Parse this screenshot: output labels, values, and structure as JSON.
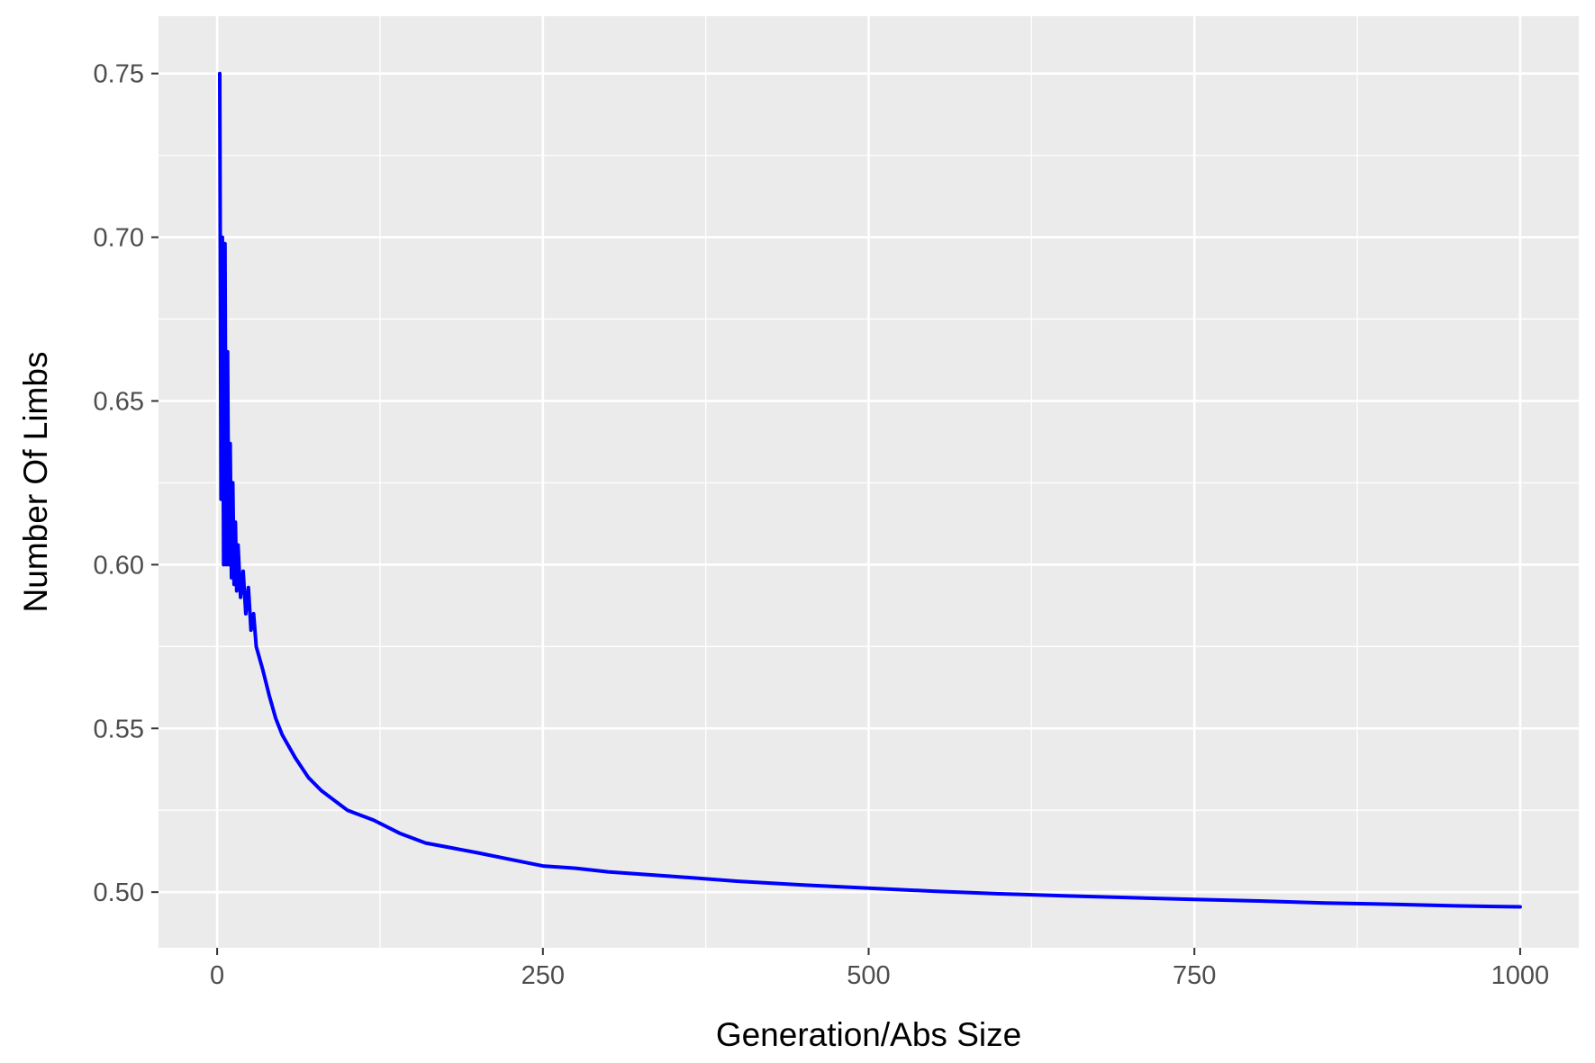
{
  "chart_data": {
    "type": "line",
    "title": "",
    "xlabel": "Generation/Abs Size",
    "ylabel": "Number Of Limbs",
    "xlim": [
      -45,
      1045
    ],
    "ylim": [
      0.483,
      0.7675
    ],
    "x_ticks": [
      0,
      250,
      500,
      750,
      1000
    ],
    "x_tick_labels": [
      "0",
      "250",
      "500",
      "750",
      "1000"
    ],
    "y_ticks": [
      0.5,
      0.55,
      0.6,
      0.65,
      0.7,
      0.75
    ],
    "y_tick_labels": [
      "0.50",
      "0.55",
      "0.60",
      "0.65",
      "0.70",
      "0.75"
    ],
    "grid": true,
    "legend": "none",
    "colors": {
      "panel": "#ebebeb",
      "grid": "#ffffff",
      "line": "#0000ff",
      "tick_text": "#4d4d4d"
    },
    "series": [
      {
        "x": [
          2,
          3,
          4,
          5,
          6,
          7,
          8,
          9,
          10,
          11,
          12,
          13,
          14,
          15,
          16,
          18,
          20,
          22,
          24,
          26,
          28,
          30,
          35,
          40,
          45,
          50,
          60,
          70,
          80,
          90,
          100,
          120,
          140,
          160,
          180,
          200,
          225,
          250,
          275,
          300,
          350,
          400,
          450,
          500,
          550,
          600,
          650,
          700,
          750,
          800,
          850,
          900,
          950,
          1000
        ],
        "y": [
          0.75,
          0.62,
          0.7,
          0.6,
          0.698,
          0.6,
          0.665,
          0.6,
          0.637,
          0.596,
          0.625,
          0.594,
          0.613,
          0.592,
          0.606,
          0.59,
          0.598,
          0.585,
          0.593,
          0.58,
          0.585,
          0.575,
          0.568,
          0.56,
          0.553,
          0.548,
          0.541,
          0.535,
          0.531,
          0.528,
          0.525,
          0.522,
          0.518,
          0.515,
          0.5135,
          0.512,
          0.51,
          0.508,
          0.5073,
          0.5062,
          0.5048,
          0.5033,
          0.5022,
          0.5012,
          0.5003,
          0.4995,
          0.4989,
          0.4983,
          0.4978,
          0.4973,
          0.4967,
          0.4963,
          0.4958,
          0.4955
        ]
      }
    ]
  }
}
